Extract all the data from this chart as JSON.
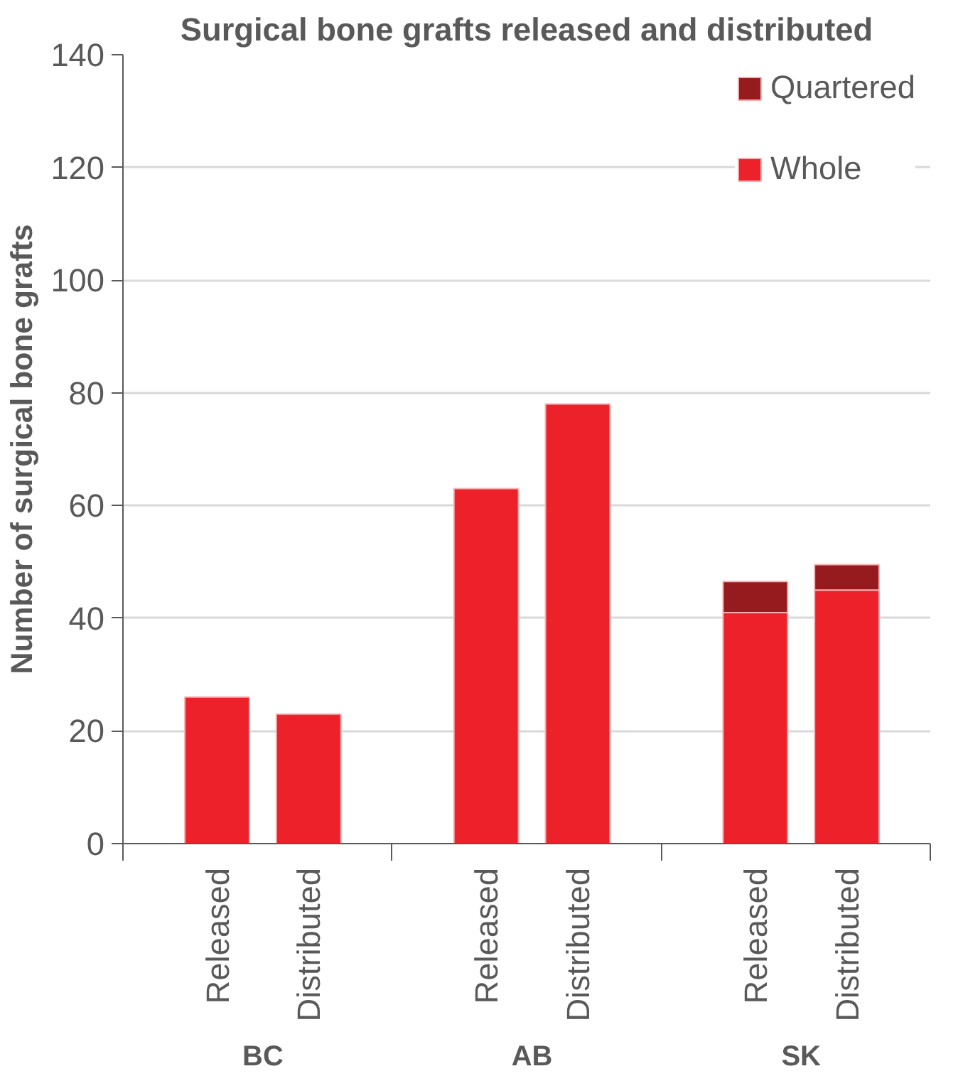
{
  "chart_data": {
    "type": "bar",
    "title": "Surgical bone grafts released and distributed",
    "ylabel": "Number of surgical bone grafts",
    "categories": [
      "Released",
      "Distributed",
      "Released",
      "Distributed",
      "Released",
      "Distributed"
    ],
    "annotations": [
      "BC",
      "AB",
      "SK"
    ],
    "stacked": true,
    "series": [
      {
        "name": "Whole",
        "color": "#ed2129",
        "values": [
          26,
          23,
          63,
          78,
          41,
          45
        ]
      },
      {
        "name": "Quartered",
        "color": "#951b1e",
        "values": [
          null,
          null,
          null,
          null,
          5.5,
          4.5
        ]
      }
    ],
    "ylim": [
      0,
      140
    ],
    "yticks": [
      0,
      20,
      40,
      60,
      80,
      100,
      120,
      140
    ],
    "grid": "y",
    "legend": "top right"
  }
}
